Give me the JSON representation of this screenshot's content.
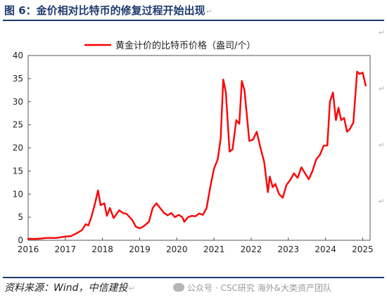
{
  "figure": {
    "title": "图 6：金价相对比特币的修复过程开始出现",
    "return_mark": "↵",
    "source": "资料来源：Wind，中信建投",
    "watermark": "公众号 · CSC研究 海外&大类资产团队"
  },
  "colors": {
    "title": "#1f3a6e",
    "series": "#ff0000",
    "rule": "#1f3a6e"
  },
  "chart_data": {
    "type": "line",
    "title": "",
    "xlabel": "",
    "ylabel": "",
    "legend_position": "top-center",
    "grid": false,
    "xlim": [
      2016,
      2025.2
    ],
    "ylim": [
      0,
      40
    ],
    "x_ticks": [
      "2016",
      "2017",
      "2018",
      "2019",
      "2020",
      "2021",
      "2022",
      "2023",
      "2024",
      "2025"
    ],
    "y_ticks": [
      "0",
      "5",
      "10",
      "15",
      "20",
      "25",
      "30",
      "35",
      "40"
    ],
    "series": [
      {
        "name": "黄金计价的比特币价格（盎司/个）",
        "color": "#ff0000",
        "x": [
          2016.0,
          2016.25,
          2016.5,
          2016.75,
          2017.0,
          2017.15,
          2017.3,
          2017.45,
          2017.55,
          2017.62,
          2017.7,
          2017.8,
          2017.88,
          2017.95,
          2018.05,
          2018.12,
          2018.2,
          2018.3,
          2018.45,
          2018.55,
          2018.65,
          2018.8,
          2018.9,
          2019.0,
          2019.1,
          2019.25,
          2019.35,
          2019.45,
          2019.55,
          2019.65,
          2019.75,
          2019.85,
          2019.95,
          2020.05,
          2020.15,
          2020.2,
          2020.3,
          2020.4,
          2020.5,
          2020.6,
          2020.7,
          2020.8,
          2020.9,
          2021.0,
          2021.1,
          2021.18,
          2021.25,
          2021.32,
          2021.42,
          2021.5,
          2021.6,
          2021.68,
          2021.75,
          2021.82,
          2021.88,
          2021.95,
          2022.05,
          2022.15,
          2022.25,
          2022.35,
          2022.45,
          2022.5,
          2022.58,
          2022.65,
          2022.75,
          2022.85,
          2022.95,
          2023.05,
          2023.15,
          2023.25,
          2023.35,
          2023.45,
          2023.55,
          2023.65,
          2023.75,
          2023.85,
          2023.95,
          2024.05,
          2024.12,
          2024.2,
          2024.28,
          2024.35,
          2024.42,
          2024.5,
          2024.58,
          2024.65,
          2024.75,
          2024.85,
          2024.92,
          2025.0,
          2025.08
        ],
        "y": [
          0.3,
          0.3,
          0.5,
          0.5,
          0.8,
          0.9,
          1.5,
          2.2,
          3.5,
          3.2,
          5.0,
          8.0,
          10.8,
          7.6,
          8.0,
          5.3,
          7.0,
          4.8,
          6.5,
          5.9,
          5.7,
          4.4,
          2.9,
          2.6,
          3.0,
          4.0,
          7.0,
          8.0,
          7.0,
          6.0,
          5.4,
          5.9,
          5.0,
          5.5,
          5.0,
          4.0,
          5.0,
          5.3,
          5.2,
          5.8,
          5.5,
          7.0,
          11.5,
          15.5,
          17.5,
          22.0,
          34.8,
          32.0,
          19.2,
          19.7,
          26.0,
          25.2,
          34.5,
          32.5,
          27.5,
          21.5,
          21.8,
          23.5,
          20.0,
          17.0,
          10.4,
          13.8,
          11.5,
          12.2,
          10.0,
          9.2,
          12.0,
          13.0,
          14.5,
          13.5,
          15.8,
          14.5,
          13.2,
          15.0,
          17.5,
          18.5,
          20.5,
          20.5,
          30.0,
          32.0,
          26.0,
          28.7,
          26.0,
          26.5,
          23.5,
          24.0,
          25.5,
          36.5,
          36.0,
          36.3,
          33.5
        ]
      }
    ]
  }
}
